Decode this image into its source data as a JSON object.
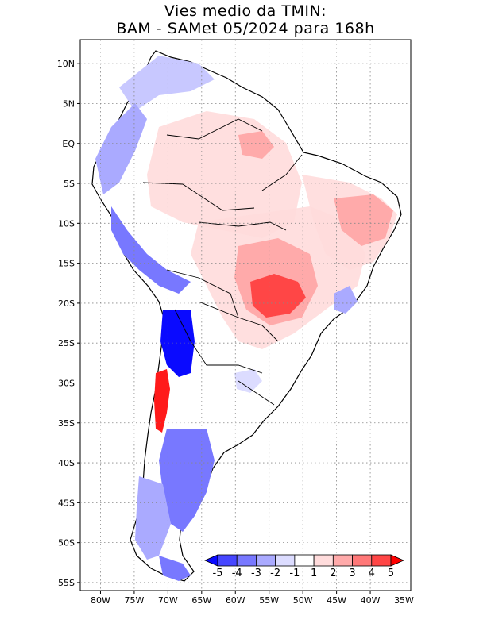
{
  "title": {
    "line1": "Vies medio da TMIN:",
    "line2": "BAM - SAMet 05/2024  para 168h"
  },
  "map": {
    "region": "South America",
    "variable": "TMIN mean bias",
    "lat_labels": [
      "10N",
      "5N",
      "EQ",
      "5S",
      "10S",
      "15S",
      "20S",
      "25S",
      "30S",
      "35S",
      "40S",
      "45S",
      "50S",
      "55S"
    ],
    "lon_labels": [
      "80W",
      "75W",
      "70W",
      "65W",
      "60W",
      "55W",
      "50W",
      "45W",
      "40W",
      "35W"
    ],
    "lat_range": [
      -56,
      13
    ],
    "lon_range": [
      -83,
      -34
    ],
    "grid": "dotted"
  },
  "colorbar": {
    "labels": [
      "-5",
      "-4",
      "-3",
      "-2",
      "-1",
      "1",
      "2",
      "3",
      "4",
      "5"
    ],
    "colors": [
      "#0a0aff",
      "#4646ff",
      "#7878ff",
      "#aaaaff",
      "#dcdcff",
      "#ffffff",
      "#ffdcdc",
      "#ffaaaa",
      "#ff7878",
      "#ff4646",
      "#ff0000"
    ]
  }
}
